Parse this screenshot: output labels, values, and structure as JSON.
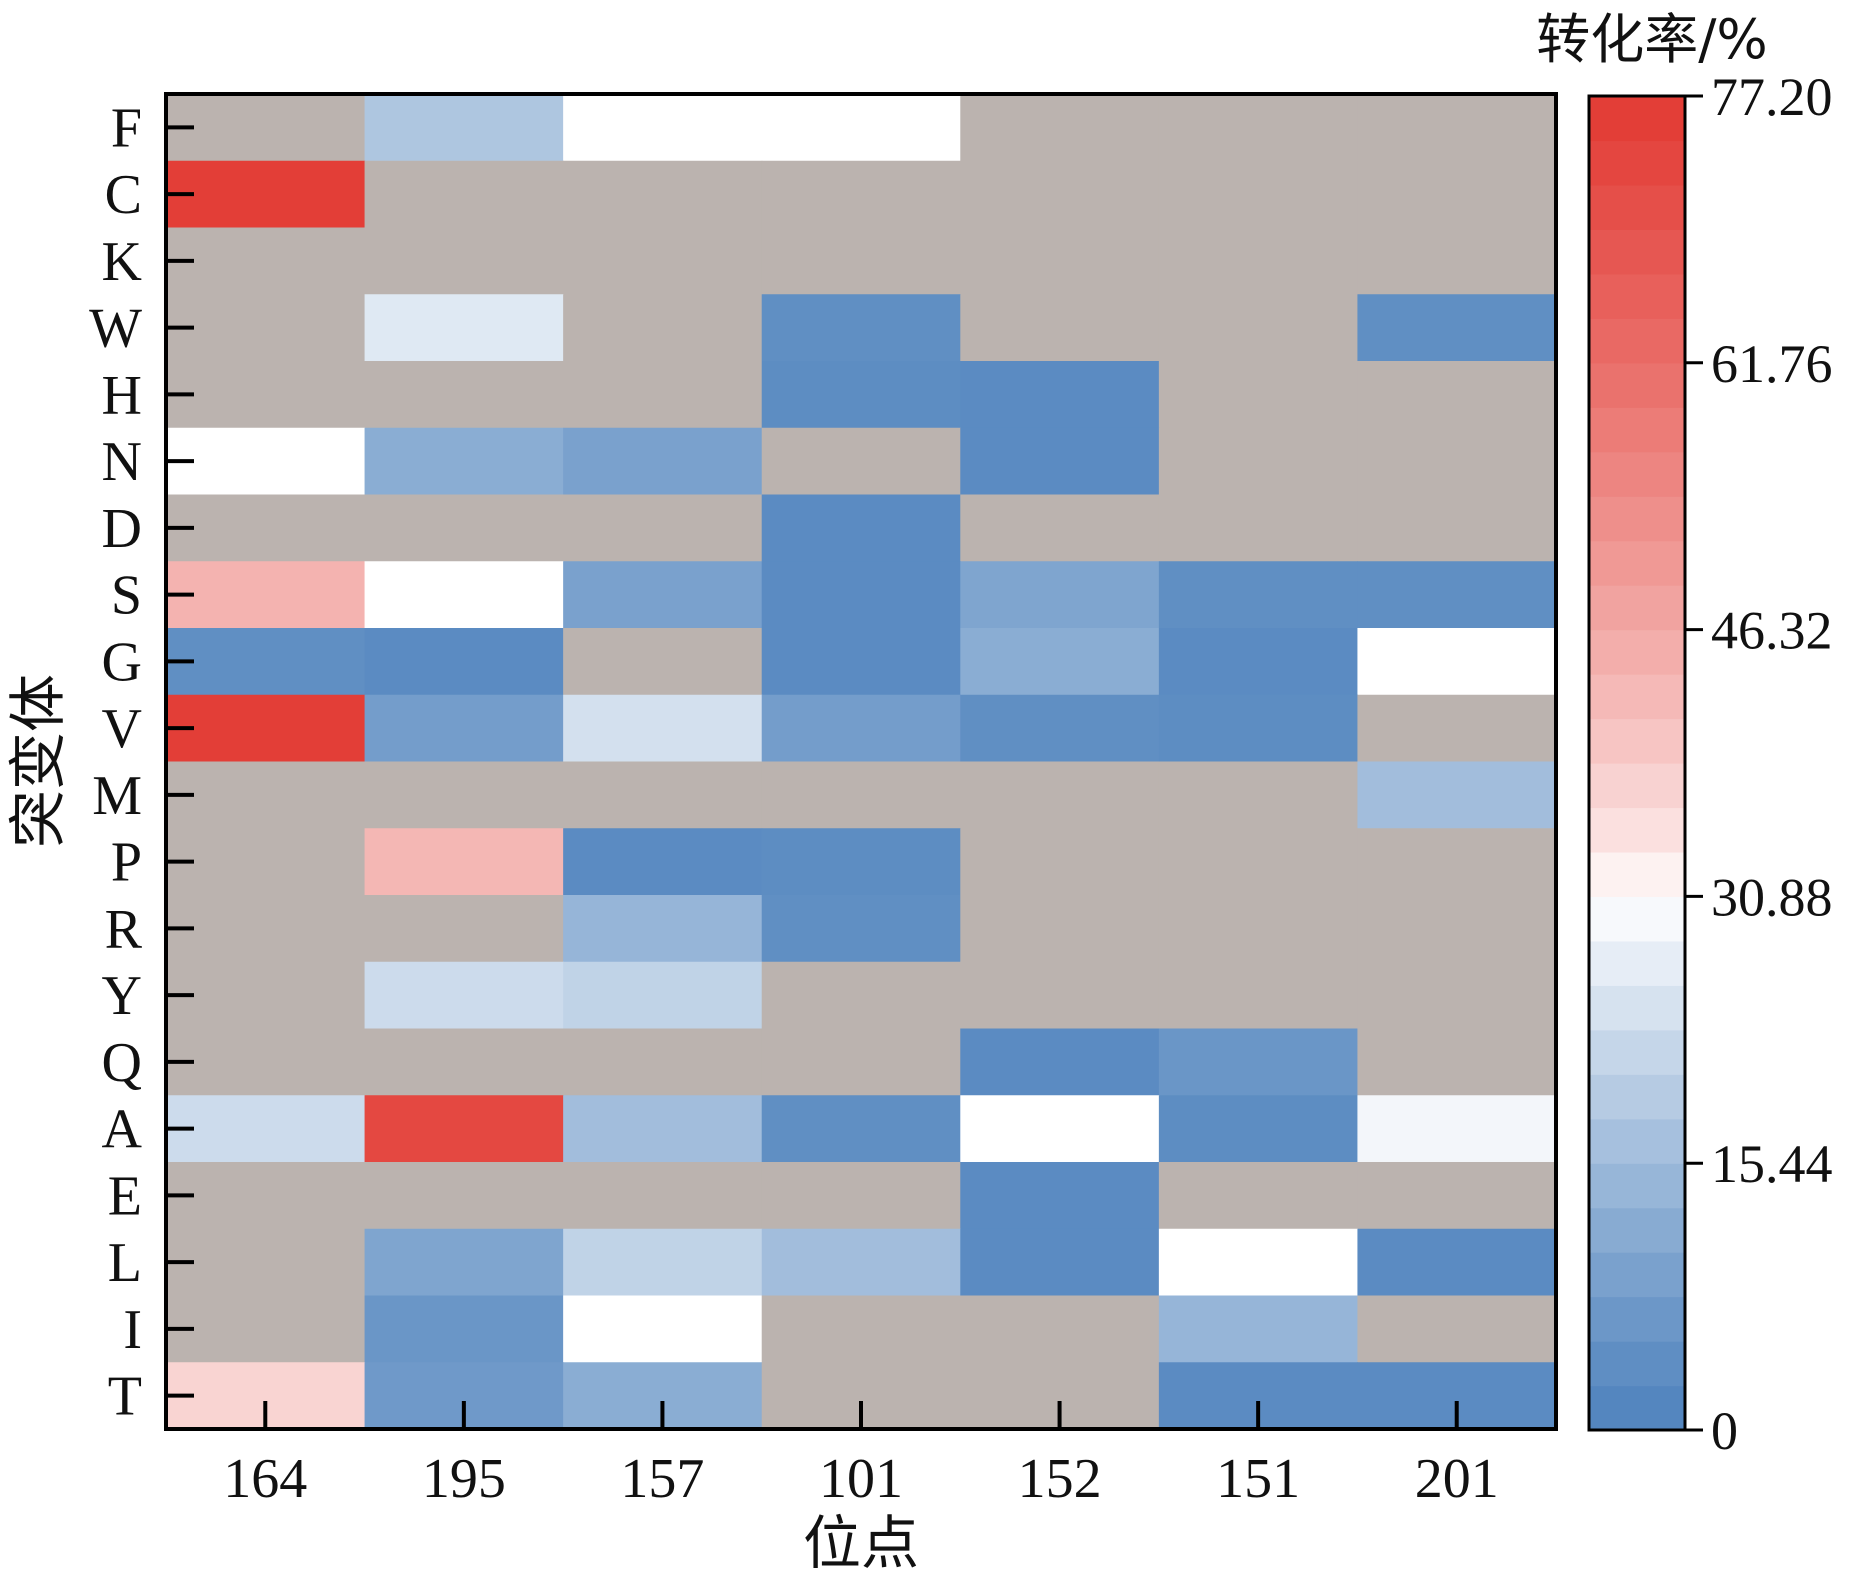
{
  "chart_data": {
    "type": "heatmap",
    "xlabel": "位点",
    "ylabel": "突变体",
    "x_categories": [
      "164",
      "195",
      "157",
      "101",
      "152",
      "151",
      "201"
    ],
    "y_categories": [
      "F",
      "C",
      "K",
      "W",
      "H",
      "N",
      "D",
      "S",
      "G",
      "V",
      "M",
      "P",
      "R",
      "Y",
      "Q",
      "A",
      "E",
      "L",
      "I",
      "T"
    ],
    "values": [
      [
        null,
        18.0,
        30.88,
        30.88,
        null,
        null,
        null
      ],
      [
        76.0,
        null,
        null,
        null,
        null,
        null,
        null
      ],
      [
        null,
        null,
        null,
        null,
        null,
        null,
        null
      ],
      [
        null,
        26.0,
        null,
        4.0,
        null,
        null,
        4.0
      ],
      [
        null,
        null,
        null,
        3.5,
        3.0,
        null,
        null
      ],
      [
        30.88,
        12.0,
        9.0,
        null,
        3.0,
        null,
        null
      ],
      [
        null,
        null,
        null,
        3.0,
        null,
        null,
        null
      ],
      [
        44.0,
        30.88,
        9.0,
        3.0,
        10.0,
        4.0,
        4.0
      ],
      [
        4.0,
        3.0,
        null,
        3.0,
        12.0,
        3.0,
        30.88
      ],
      [
        76.0,
        8.0,
        24.0,
        8.0,
        4.0,
        3.5,
        null
      ],
      [
        null,
        null,
        null,
        null,
        null,
        null,
        16.0
      ],
      [
        null,
        43.0,
        3.0,
        3.5,
        null,
        null,
        null
      ],
      [
        null,
        null,
        14.0,
        4.0,
        null,
        null,
        null
      ],
      [
        null,
        23.0,
        21.0,
        null,
        null,
        null,
        null
      ],
      [
        null,
        null,
        null,
        null,
        3.0,
        6.0,
        null
      ],
      [
        23.0,
        73.0,
        16.0,
        4.0,
        30.88,
        3.5,
        29.0
      ],
      [
        null,
        null,
        null,
        null,
        3.0,
        null,
        null
      ],
      [
        null,
        10.0,
        21.0,
        16.0,
        3.0,
        30.88,
        3.0
      ],
      [
        null,
        6.0,
        30.88,
        null,
        null,
        14.0,
        null
      ],
      [
        37.0,
        7.0,
        12.0,
        null,
        null,
        3.0,
        3.0
      ]
    ],
    "colorbar": {
      "title": "转化率/%",
      "min": 0,
      "max": 77.2,
      "ticks": [
        "0",
        "15.44",
        "30.88",
        "46.32",
        "61.76",
        "77.20"
      ],
      "low_color": "#4f83bd",
      "mid_color": "#ffffff",
      "high_color": "#e23a33",
      "mid_value": 30.88
    },
    "missing_color": "#bbb3af"
  }
}
